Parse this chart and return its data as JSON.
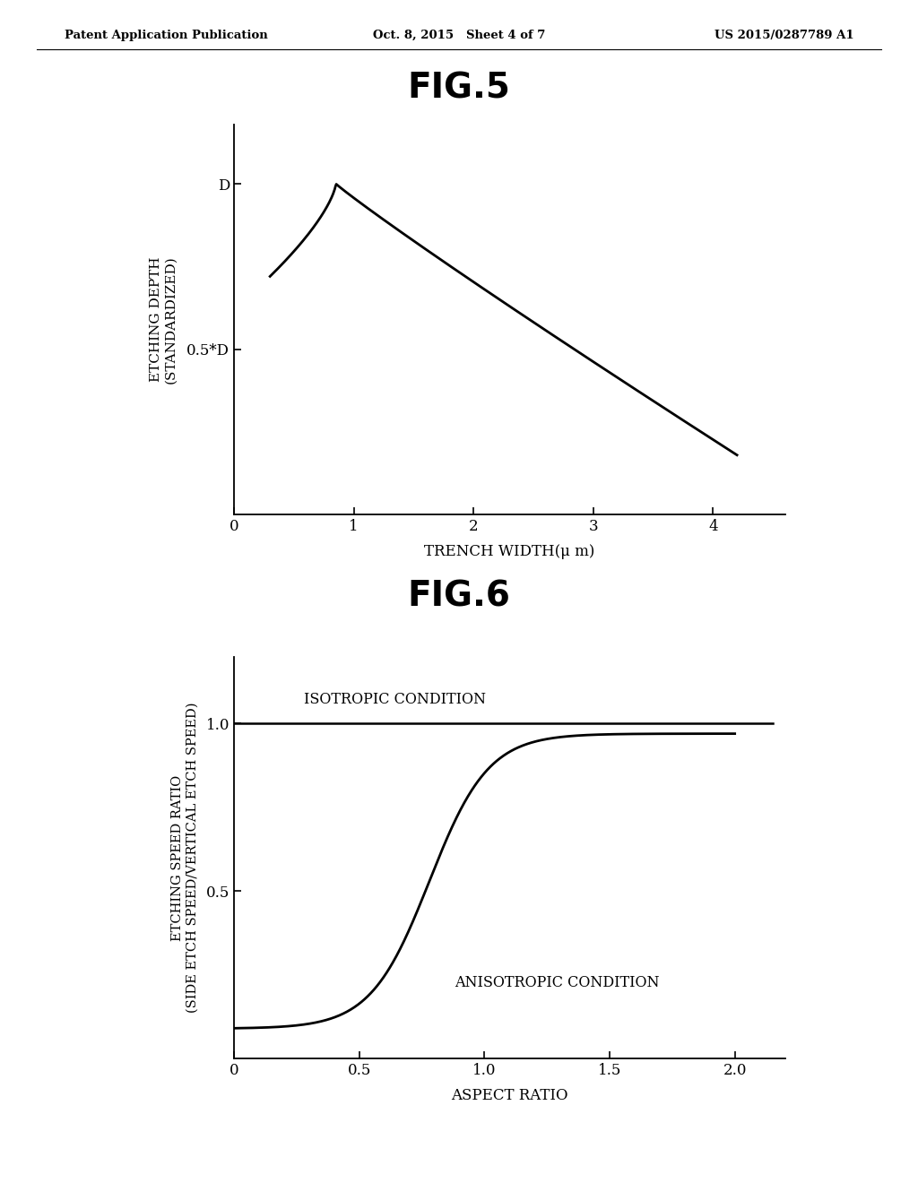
{
  "header_left": "Patent Application Publication",
  "header_center": "Oct. 8, 2015   Sheet 4 of 7",
  "header_right": "US 2015/0287789 A1",
  "fig5_title": "FIG.5",
  "fig6_title": "FIG.6",
  "fig5_xlabel": "TRENCH WIDTH(μ m)",
  "fig5_ylabel_line1": "ETCHING DEPTH",
  "fig5_ylabel_line2": "(STANDARDIZED)",
  "fig5_ytick_labels": [
    "D",
    "0.5*D"
  ],
  "fig5_ytick_vals": [
    1.0,
    0.5
  ],
  "fig5_xticks": [
    0,
    1,
    2,
    3,
    4
  ],
  "fig5_xlim": [
    0,
    4.6
  ],
  "fig5_ylim": [
    0,
    1.18
  ],
  "fig6_xlabel": "ASPECT RATIO",
  "fig6_ylabel_line1": "ETCHING SPEED RATIO",
  "fig6_ylabel_line2": "(SIDE ETCH SPEED/VERTICAL ETCH SPEED)",
  "fig6_ytick_labels": [
    "0.5",
    "1.0"
  ],
  "fig6_ytick_vals": [
    0.5,
    1.0
  ],
  "fig6_xticks": [
    0,
    0.5,
    1.0,
    1.5,
    2.0
  ],
  "fig6_xlim": [
    0,
    2.2
  ],
  "fig6_ylim": [
    0,
    1.2
  ],
  "fig6_isotropic_label": "ISOTROPIC CONDITION",
  "fig6_anisotropic_label": "ANISOTROPIC CONDITION",
  "background_color": "#ffffff",
  "line_color": "#000000",
  "text_color": "#000000"
}
